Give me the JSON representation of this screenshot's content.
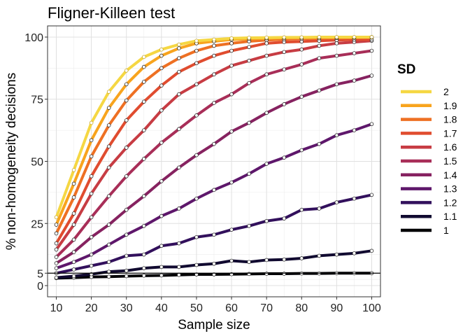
{
  "chart_data": {
    "type": "line",
    "title": "Fligner-Killeen test",
    "xlabel": "Sample size",
    "ylabel": "% non-homogeneity decisions",
    "xlim": [
      7.5,
      102.5
    ],
    "ylim": [
      -4.5,
      104.5
    ],
    "x_ticks": [
      10,
      20,
      30,
      40,
      50,
      60,
      70,
      80,
      90,
      100
    ],
    "y_ticks": [
      0,
      5,
      25,
      50,
      75,
      100
    ],
    "x_tick_labels": [
      "10",
      "20",
      "30",
      "40",
      "50",
      "60",
      "70",
      "80",
      "90",
      "100"
    ],
    "y_tick_labels": [
      "0",
      "5",
      "25",
      "50",
      "75",
      "100"
    ],
    "reference_line": 5,
    "grid": true,
    "legend_title": "SD",
    "legend_position": "right",
    "x": [
      10,
      15,
      20,
      25,
      30,
      35,
      40,
      45,
      50,
      55,
      60,
      65,
      70,
      75,
      80,
      85,
      90,
      95,
      100
    ],
    "series": [
      {
        "name": "2",
        "color": "#f5d743",
        "values": [
          27.5,
          46.5,
          65.5,
          78,
          86.5,
          92,
          95,
          97,
          98.5,
          99,
          99.5,
          99.7,
          99.8,
          99.9,
          99.9,
          100,
          100,
          100,
          100
        ]
      },
      {
        "name": "1.9",
        "color": "#f8a41d",
        "values": [
          24.5,
          41,
          58.5,
          71.5,
          81,
          88,
          92.5,
          95.5,
          97.5,
          98.3,
          99,
          99.3,
          99.5,
          99.7,
          99.8,
          99.9,
          99.9,
          99.9,
          100
        ]
      },
      {
        "name": "1.8",
        "color": "#ee7023",
        "values": [
          21,
          35.5,
          52,
          64.5,
          74.5,
          82,
          87.5,
          91.5,
          94.5,
          96.5,
          97.5,
          98.3,
          98.8,
          99.1,
          99.4,
          99.5,
          99.6,
          99.7,
          99.8
        ]
      },
      {
        "name": "1.7",
        "color": "#e04c2f",
        "values": [
          17,
          29,
          44,
          56,
          66.5,
          74,
          80.5,
          86,
          89.5,
          92.5,
          94.5,
          96,
          97.5,
          98,
          98.2,
          98.5,
          98.8,
          99,
          99
        ]
      },
      {
        "name": "1.6",
        "color": "#c73c43",
        "values": [
          14.5,
          24.5,
          37,
          47.5,
          55.5,
          62.5,
          70.5,
          77,
          81,
          85,
          88.5,
          90.5,
          92.5,
          94,
          95,
          96.5,
          97.5,
          98,
          98.5
        ]
      },
      {
        "name": "1.5",
        "color": "#a82e58",
        "values": [
          11.5,
          18.5,
          27.5,
          36,
          44,
          51,
          57.5,
          63,
          68.5,
          73.5,
          77,
          81.5,
          85,
          87,
          89,
          91.5,
          92.5,
          93.5,
          94.5
        ]
      },
      {
        "name": "1.4",
        "color": "#862260",
        "values": [
          9,
          13.5,
          19.5,
          24.5,
          30.5,
          36,
          42,
          47.5,
          52.5,
          57,
          62,
          65.5,
          69.5,
          73,
          76,
          78.5,
          81,
          82.5,
          84.5
        ]
      },
      {
        "name": "1.3",
        "color": "#5e176b",
        "values": [
          7,
          9.5,
          12.5,
          16.5,
          20.5,
          24,
          28,
          31,
          35,
          38.5,
          41.5,
          45,
          49,
          51.5,
          54.5,
          57,
          60.5,
          62.5,
          65
        ]
      },
      {
        "name": "1.2",
        "color": "#32105c",
        "values": [
          5,
          6.5,
          8,
          9.5,
          12,
          12.5,
          16,
          17,
          19.5,
          20.5,
          22.5,
          24,
          26,
          27,
          30.5,
          31,
          33.5,
          35,
          36.5
        ]
      },
      {
        "name": "1.1",
        "color": "#110a30",
        "values": [
          3.2,
          3.8,
          4.6,
          5.6,
          6.0,
          7.0,
          7.5,
          7.5,
          8.3,
          8.8,
          10.0,
          9.5,
          10.3,
          10.5,
          11.0,
          12.0,
          12.5,
          13.0,
          14.0
        ]
      },
      {
        "name": "1",
        "color": "#000004",
        "values": [
          3.0,
          3.2,
          3.5,
          3.6,
          3.8,
          4.0,
          4.1,
          4.3,
          4.5,
          4.5,
          4.6,
          4.7,
          4.8,
          4.8,
          4.9,
          4.9,
          5.0,
          5.0,
          5.0
        ]
      }
    ]
  }
}
